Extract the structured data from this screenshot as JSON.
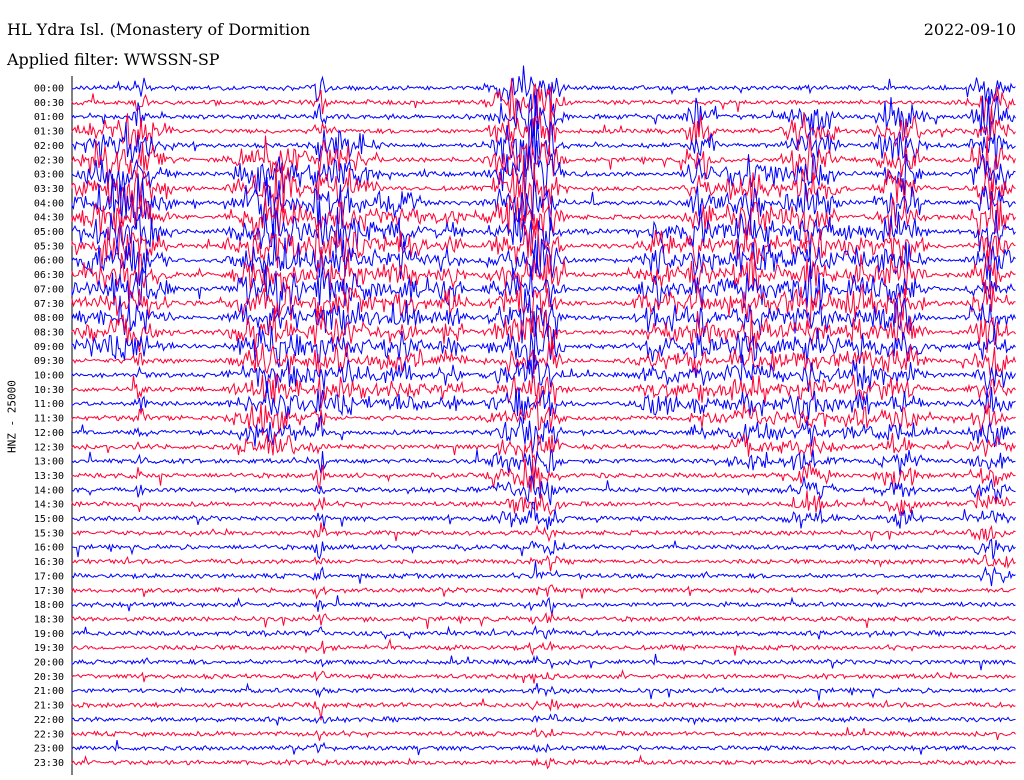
{
  "header": {
    "station": "HL Ydra Isl. (Monastery of Dormition",
    "date": "2022-09-10",
    "filter": "Applied filter: WWSSN-SP"
  },
  "axis": {
    "channel_label": "HNZ - 25000"
  },
  "colors": {
    "trace_a": "#0000ff",
    "trace_b": "#ff0033"
  },
  "chart_data": {
    "type": "line",
    "title": "HL Ydra Isl. (Monastery of Dormition",
    "ylabel": "HNZ - 25000",
    "rows": [
      "00:00",
      "00:30",
      "01:00",
      "01:30",
      "02:00",
      "02:30",
      "03:00",
      "03:30",
      "04:00",
      "04:30",
      "05:00",
      "05:30",
      "06:00",
      "06:30",
      "07:00",
      "07:30",
      "08:00",
      "08:30",
      "09:00",
      "09:30",
      "10:00",
      "10:30",
      "11:00",
      "11:30",
      "12:00",
      "12:30",
      "13:00",
      "13:30",
      "14:00",
      "14:30",
      "15:00",
      "15:30",
      "16:00",
      "16:30",
      "17:00",
      "17:30",
      "18:00",
      "18:30",
      "19:00",
      "19:30",
      "20:00",
      "20:30",
      "21:00",
      "21:30",
      "22:00",
      "22:30",
      "23:00",
      "23:30"
    ],
    "row_colors": [
      "blue",
      "red"
    ],
    "grid": false,
    "legend": "none"
  }
}
